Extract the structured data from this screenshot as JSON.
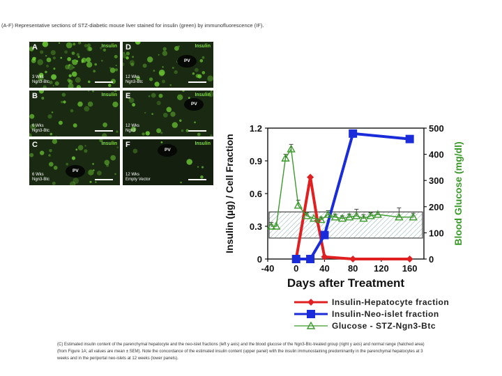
{
  "top_caption": "(A-F) Representative sections of STZ-diabetic mouse liver stained for insulin (green) by immunofluorescence (IF).",
  "panels": [
    {
      "letter": "A",
      "stain": "Insulin",
      "label": "3 Wks\nNgn3-Btc",
      "pv": ""
    },
    {
      "letter": "D",
      "stain": "Insulin",
      "label": "12 Wks\nNgn3-Btc",
      "pv": "PV"
    },
    {
      "letter": "B",
      "stain": "Insulin",
      "label": "6 Wks\nNgn3-Btc",
      "pv": ""
    },
    {
      "letter": "E",
      "stain": "Insulin",
      "label": "12 Wks\nNgn3",
      "pv": "PV"
    },
    {
      "letter": "C",
      "stain": "Insulin",
      "label": "6 Wks\nNgn3-Btc",
      "pv": "PV"
    },
    {
      "letter": "F",
      "stain": "Insulin",
      "label": "12 Wks\nEmpty Vector",
      "pv": "PV"
    }
  ],
  "chart_data": {
    "type": "line",
    "xlabel": "Days after Treatment",
    "ylabel_left": "Insulin (µg) / Cell Fraction",
    "ylabel_right": "Blood Glucose (mg/dl)",
    "xlim": [
      -40,
      180
    ],
    "ylim_left": [
      0,
      1.2
    ],
    "ylim_right": [
      0,
      500
    ],
    "x_ticks": [
      -40,
      0,
      40,
      80,
      120,
      160
    ],
    "y_left_ticks": [
      0,
      0.3,
      0.6,
      0.9,
      1.2
    ],
    "y_right_ticks": [
      0,
      100,
      200,
      300,
      400,
      500
    ],
    "normal_range": [
      80,
      180
    ],
    "series": [
      {
        "name": "Insulin-Hepatocyte fraction",
        "axis": "left",
        "color": "#e02020",
        "marker": "diamond",
        "x": [
          0,
          20,
          30,
          40,
          80,
          160
        ],
        "y": [
          0,
          0.75,
          0.35,
          0.02,
          0,
          0
        ]
      },
      {
        "name": "Insulin-Neo-islet fraction",
        "axis": "left",
        "color": "#1a2bd9",
        "marker": "square",
        "x": [
          0,
          20,
          40,
          80,
          160
        ],
        "y": [
          0,
          0,
          0.22,
          1.15,
          1.1
        ]
      },
      {
        "name": "Glucose - STZ-Ngn3-Btc",
        "axis": "right",
        "color": "#3a9a2a",
        "marker": "triangle",
        "x": [
          -35,
          -28,
          -15,
          -7,
          3,
          15,
          25,
          35,
          45,
          55,
          65,
          75,
          85,
          95,
          105,
          115,
          145,
          165
        ],
        "y": [
          125,
          125,
          385,
          420,
          205,
          165,
          155,
          150,
          170,
          160,
          155,
          160,
          165,
          155,
          165,
          170,
          160,
          160
        ],
        "err": [
          15,
          0,
          15,
          18,
          20,
          12,
          0,
          10,
          15,
          12,
          10,
          12,
          25,
          15,
          12,
          10,
          35,
          15
        ]
      }
    ]
  },
  "bottom_caption": "(C) Estimated insulin content of the parenchymal hepatocyte and the neo-islet fractions (left y axis) and the blood glucose of the Ngn3-Btc-treated group (right y axis) and normal range (hatched area) (from Figure 1A; all values are mean ± SEM). Note the concordance of the estimated insulin content (upper panel) with the insulin immunostaining predominantly in the parenchymal hepatocytes at 3 weeks and in the periportal neo-islets at 12 weeks (lower panels).",
  "colors": {
    "insulin_stain": "#7fdc3a",
    "hepatocyte": "#e02020",
    "neo_islet": "#1a2bd9",
    "glucose": "#3a9a2a"
  }
}
